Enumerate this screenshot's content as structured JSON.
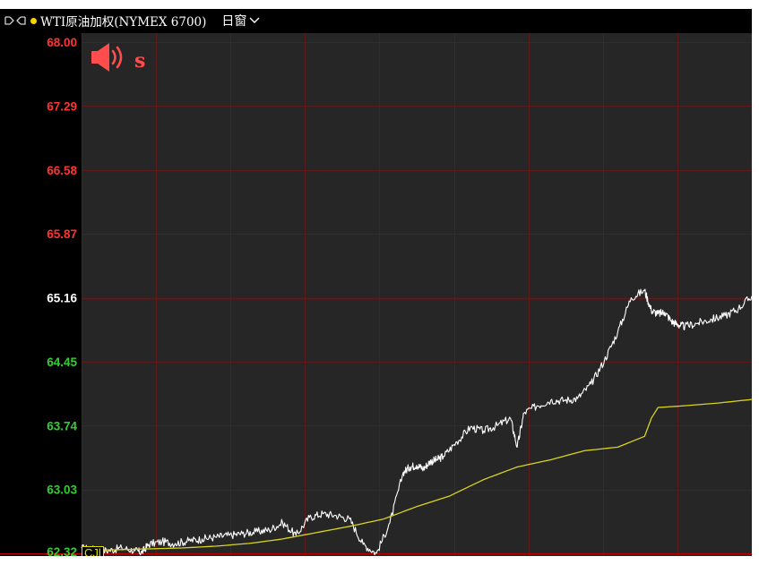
{
  "header": {
    "symbol_text": "WTI原油加权(NYMEX 6700)",
    "period_label": "日窗"
  },
  "colors": {
    "background": "#000000",
    "plot_background": "#262626",
    "grid": "#5c1a1a",
    "price_line": "#ffffff",
    "avg_line": "#d9d41b",
    "up_label": "#ff3333",
    "down_label": "#33cc33",
    "ref_line": "#a00000",
    "alert_icon": "#ff4d4d",
    "status_dot": "#f5d800"
  },
  "icons": {
    "nav": "split-arrows-icon",
    "alert": "speaker-alert-icon",
    "dropdown": "chevron-down-icon"
  },
  "alert_label": "s",
  "bottom_tag": "CJl",
  "chart_data": {
    "type": "line",
    "xlabel": "",
    "ylabel": "",
    "ylim": [
      62.32,
      68.0
    ],
    "reference_price": 65.16,
    "grid": true,
    "y_ticks": [
      {
        "value": 68.0,
        "label": "68.00",
        "tone": "up"
      },
      {
        "value": 67.29,
        "label": "67.29",
        "tone": "up"
      },
      {
        "value": 66.58,
        "label": "66.58",
        "tone": "up"
      },
      {
        "value": 65.87,
        "label": "65.87",
        "tone": "up"
      },
      {
        "value": 65.16,
        "label": "65.16",
        "tone": "flat"
      },
      {
        "value": 64.45,
        "label": "64.45",
        "tone": "down"
      },
      {
        "value": 63.74,
        "label": "63.74",
        "tone": "down"
      },
      {
        "value": 63.03,
        "label": "63.03",
        "tone": "down"
      },
      {
        "value": 62.32,
        "label": "62.32",
        "tone": "down"
      }
    ],
    "x_divisions": 9,
    "series": [
      {
        "name": "",
        "role": "price",
        "x": [
          0,
          0.02,
          0.04,
          0.06,
          0.08,
          0.09,
          0.1,
          0.12,
          0.14,
          0.16,
          0.18,
          0.2,
          0.22,
          0.24,
          0.26,
          0.28,
          0.3,
          0.32,
          0.34,
          0.36,
          0.38,
          0.4,
          0.42,
          0.44,
          0.46,
          0.48,
          0.49,
          0.5,
          0.51,
          0.52,
          0.53,
          0.54,
          0.56,
          0.58,
          0.6,
          0.62,
          0.64,
          0.65,
          0.66,
          0.68,
          0.7,
          0.72,
          0.74,
          0.76,
          0.78,
          0.8,
          0.82,
          0.84,
          0.85,
          0.86,
          0.87,
          0.88,
          0.89,
          0.9,
          0.92,
          0.94,
          0.96,
          0.98,
          1.0
        ],
        "values": [
          62.38,
          62.36,
          62.35,
          62.38,
          62.35,
          62.33,
          62.42,
          62.45,
          62.43,
          62.46,
          62.48,
          62.5,
          62.52,
          62.54,
          62.56,
          62.58,
          62.66,
          62.52,
          62.72,
          62.76,
          62.74,
          62.7,
          62.42,
          62.32,
          62.66,
          63.22,
          63.28,
          63.3,
          63.26,
          63.34,
          63.36,
          63.4,
          63.56,
          63.72,
          63.68,
          63.74,
          63.82,
          63.5,
          63.88,
          63.96,
          64.02,
          64.02,
          64.04,
          64.2,
          64.46,
          64.78,
          65.16,
          65.24,
          65.02,
          64.98,
          65.0,
          64.9,
          64.86,
          64.84,
          64.88,
          64.92,
          64.96,
          65.04,
          65.18
        ]
      },
      {
        "name": "",
        "role": "average",
        "x": [
          0,
          0.05,
          0.1,
          0.15,
          0.2,
          0.25,
          0.3,
          0.35,
          0.4,
          0.45,
          0.5,
          0.55,
          0.6,
          0.65,
          0.7,
          0.75,
          0.8,
          0.84,
          0.85,
          0.86,
          0.9,
          0.95,
          1.0
        ],
        "values": [
          62.36,
          62.36,
          62.37,
          62.38,
          62.4,
          62.43,
          62.48,
          62.55,
          62.62,
          62.7,
          62.84,
          62.96,
          63.14,
          63.28,
          63.36,
          63.46,
          63.5,
          63.62,
          63.82,
          63.94,
          63.96,
          63.99,
          64.03
        ]
      }
    ]
  }
}
